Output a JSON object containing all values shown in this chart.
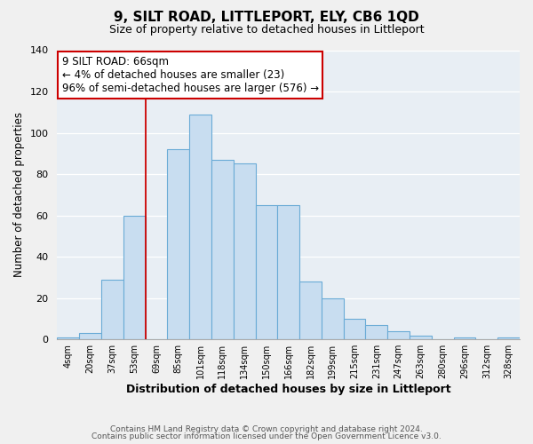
{
  "title": "9, SILT ROAD, LITTLEPORT, ELY, CB6 1QD",
  "subtitle": "Size of property relative to detached houses in Littleport",
  "xlabel": "Distribution of detached houses by size in Littleport",
  "ylabel": "Number of detached properties",
  "bin_labels": [
    "4sqm",
    "20sqm",
    "37sqm",
    "53sqm",
    "69sqm",
    "85sqm",
    "101sqm",
    "118sqm",
    "134sqm",
    "150sqm",
    "166sqm",
    "182sqm",
    "199sqm",
    "215sqm",
    "231sqm",
    "247sqm",
    "263sqm",
    "280sqm",
    "296sqm",
    "312sqm",
    "328sqm"
  ],
  "bar_values": [
    1,
    3,
    29,
    60,
    0,
    92,
    109,
    87,
    85,
    65,
    65,
    28,
    20,
    10,
    7,
    4,
    2,
    0,
    1,
    0,
    1
  ],
  "bar_color": "#c8ddf0",
  "bar_edge_color": "#6aabd6",
  "vline_x_idx": 4,
  "vline_color": "#cc0000",
  "annotation_title": "9 SILT ROAD: 66sqm",
  "annotation_line1": "← 4% of detached houses are smaller (23)",
  "annotation_line2": "96% of semi-detached houses are larger (576) →",
  "annotation_box_facecolor": "#ffffff",
  "annotation_box_edgecolor": "#cc0000",
  "ylim": [
    0,
    140
  ],
  "yticks": [
    0,
    20,
    40,
    60,
    80,
    100,
    120,
    140
  ],
  "footer1": "Contains HM Land Registry data © Crown copyright and database right 2024.",
  "footer2": "Contains public sector information licensed under the Open Government Licence v3.0.",
  "bg_color": "#f0f0f0",
  "plot_bg_color": "#e8eef4"
}
